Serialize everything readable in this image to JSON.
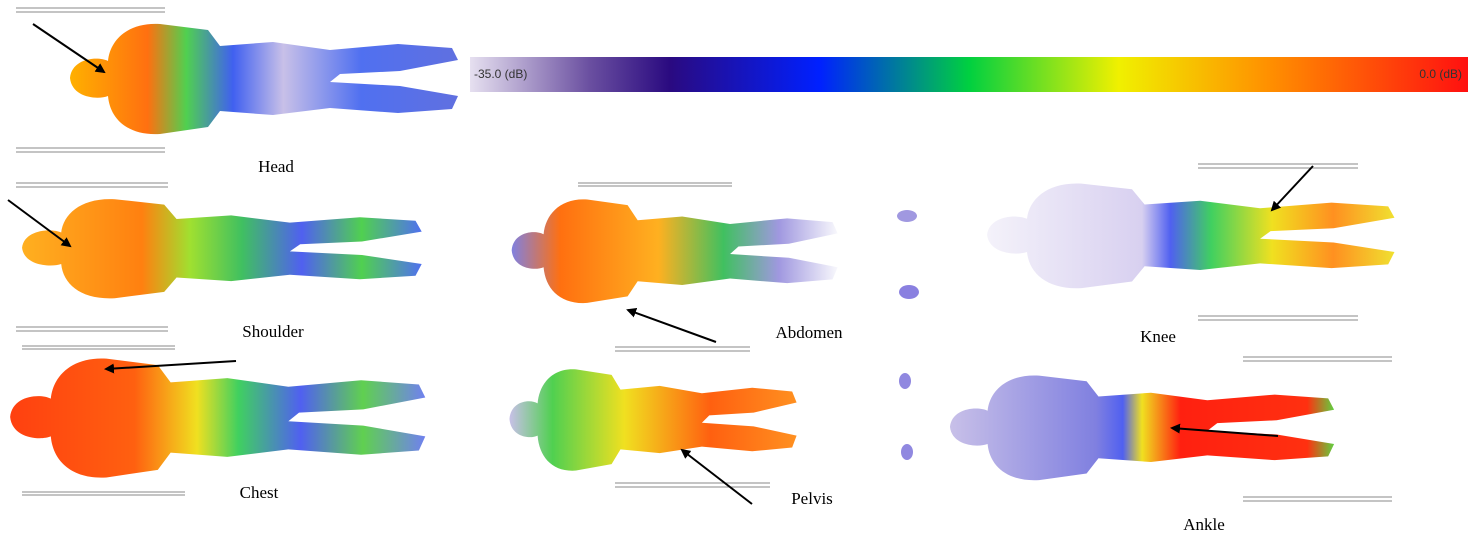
{
  "colorbar": {
    "min_label": "-35.0 (dB)",
    "max_label": "0.0 (dB)"
  },
  "panels": [
    {
      "label": "Head"
    },
    {
      "label": "Shoulder"
    },
    {
      "label": "Chest"
    },
    {
      "label": "Abdomen"
    },
    {
      "label": "Pelvis"
    },
    {
      "label": "Knee"
    },
    {
      "label": "Ankle"
    }
  ]
}
